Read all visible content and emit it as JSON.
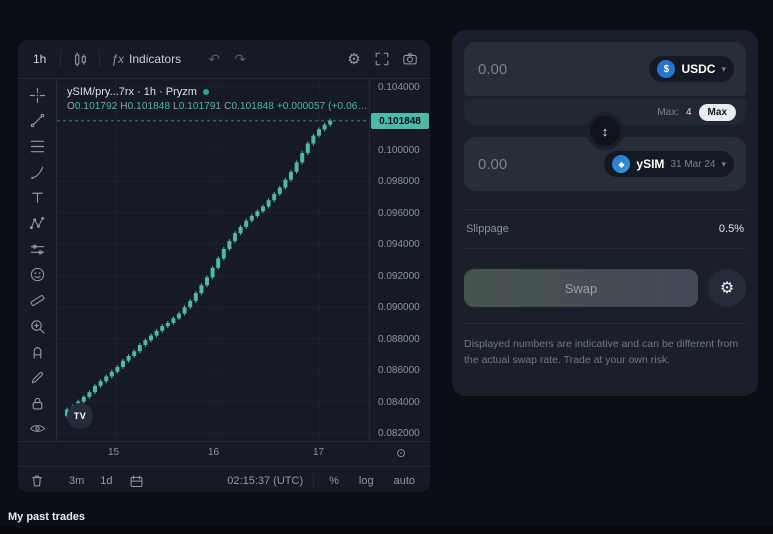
{
  "page": {
    "past_trades_heading": "My past trades"
  },
  "chart_panel": {
    "toolbar": {
      "interval": "1h",
      "fx": "ƒx",
      "indicators": "Indicators"
    },
    "legend": {
      "symbol_line": "ySIM/pry...7rx · 1h · Pryzm",
      "o_label": "O",
      "o": "0.101792",
      "h_label": "H",
      "h": "0.101848",
      "l_label": "L",
      "l": "0.101791",
      "c_label": "C",
      "c": "0.101848",
      "change": "+0.000057 (+0.06…"
    },
    "price_axis": {
      "labels": [
        "0.104000",
        "0.100000",
        "0.098000",
        "0.096000",
        "0.094000",
        "0.092000",
        "0.090000",
        "0.088000",
        "0.086000",
        "0.084000",
        "0.082000"
      ],
      "last_price": "0.101848"
    },
    "time_axis": {
      "labels": [
        "15",
        "16",
        "17"
      ]
    },
    "bottom_bar": {
      "range_3m": "3m",
      "range_1d": "1d",
      "clock": "02:15:37 (UTC)",
      "percent": "%",
      "log": "log",
      "auto": "auto"
    },
    "logo": "TV"
  },
  "swap_panel": {
    "from": {
      "placeholder": "0.00",
      "token": "USDC",
      "logo_glyph": "$"
    },
    "max_row": {
      "label": "Max:",
      "value": "4",
      "button": "Max"
    },
    "to": {
      "placeholder": "0.00",
      "token": "ySIM",
      "maturity": "31 Mar 24",
      "logo_glyph": "◆"
    },
    "slippage": {
      "label": "Slippage",
      "value": "0.5%"
    },
    "swap_button": "Swap",
    "disclaimer": "Displayed numbers are indicative and can be different from the actual swap rate. Trade at your own risk."
  },
  "icons": {
    "gear": "⚙",
    "undo": "↶",
    "redo": "↷",
    "swap_direction": "↕",
    "chevron_down": "▾",
    "goto_realtime": "⊙"
  },
  "colors": {
    "accent_teal": "#4fb8a6",
    "usdc_blue": "#2775ca"
  },
  "chart_data": {
    "type": "candlestick",
    "title": "ySIM/pry...7rx · 1h · Pryzm",
    "ohlc": {
      "open": 0.101792,
      "high": 0.101848,
      "low": 0.101791,
      "close": 0.101848,
      "change_abs": 5.7e-05,
      "change_pct": "+0.06%"
    },
    "last": 0.101848,
    "ylim": [
      0.0815,
      0.1045
    ],
    "y_ticks": [
      0.082,
      0.084,
      0.086,
      0.088,
      0.09,
      0.092,
      0.094,
      0.096,
      0.098,
      0.1,
      0.102,
      0.104
    ],
    "x_ticks": [
      "15",
      "16",
      "17"
    ],
    "color_up": "#4fb8a6",
    "closes": [
      0.0835,
      0.0837,
      0.084,
      0.0843,
      0.0846,
      0.085,
      0.0853,
      0.0856,
      0.0859,
      0.0862,
      0.0866,
      0.0869,
      0.0872,
      0.0876,
      0.0879,
      0.0882,
      0.0885,
      0.0888,
      0.089,
      0.0893,
      0.0896,
      0.09,
      0.0904,
      0.0909,
      0.0914,
      0.0919,
      0.0925,
      0.0931,
      0.0937,
      0.0942,
      0.0947,
      0.0951,
      0.0955,
      0.0958,
      0.0961,
      0.0964,
      0.0968,
      0.0972,
      0.0976,
      0.0981,
      0.0986,
      0.0992,
      0.0998,
      0.1004,
      0.1009,
      0.1013,
      0.1016,
      0.10185
    ]
  }
}
